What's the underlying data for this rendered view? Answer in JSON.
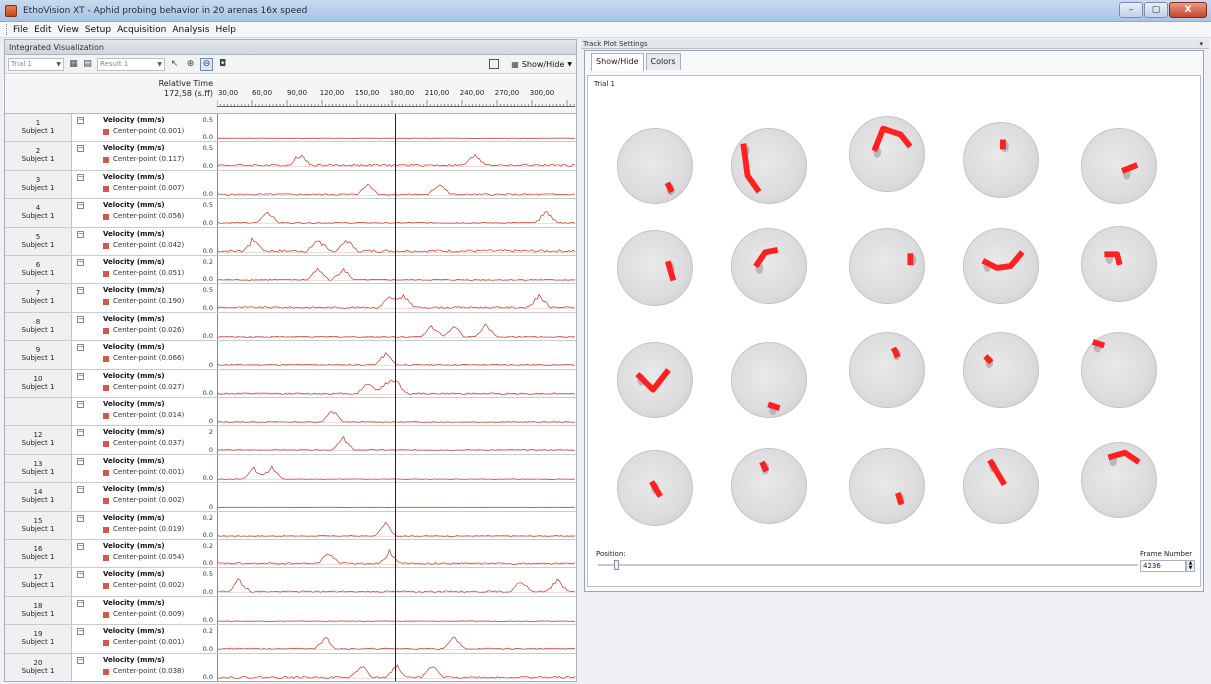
{
  "window": {
    "title": "EthoVision XT - Aphid probing behavior in 20 arenas 16x speed",
    "minimize_label": "–",
    "maximize_label": "▢",
    "close_label": "X"
  },
  "menu": {
    "items": [
      "File",
      "Edit",
      "View",
      "Setup",
      "Acquisition",
      "Analysis",
      "Help"
    ]
  },
  "left_panel": {
    "title": "Integrated Visualization",
    "trial_combo": "Trial   1",
    "result_combo": "Result 1",
    "show_hide_label": "Show/Hide",
    "relative_time_label": "Relative Time",
    "current_time": "172,58 (s.ff)",
    "time_ticks": [
      "30,00",
      "60,00",
      "90,00",
      "120,00",
      "150,00",
      "180,00",
      "210,00",
      "240,00",
      "270,00",
      "300,00"
    ],
    "variable_name": "Velocity (mm/s)",
    "point_name": "Center-point",
    "rows": [
      {
        "num": "1",
        "subject": "Subject 1",
        "value": "(0.001)",
        "max": "0.5",
        "min": "0.0",
        "activity": 0.05,
        "peaks": []
      },
      {
        "num": "2",
        "subject": "Subject 1",
        "value": "(0.117)",
        "max": "0.5",
        "min": "0.0",
        "activity": 0.45,
        "peaks": [
          0.23,
          0.72
        ]
      },
      {
        "num": "3",
        "subject": "Subject 1",
        "value": "(0.007)",
        "max": "",
        "min": "0.0",
        "activity": 0.35,
        "peaks": [
          0.42,
          0.62
        ]
      },
      {
        "num": "4",
        "subject": "Subject 1",
        "value": "(0.056)",
        "max": "0.5",
        "min": "0.0",
        "activity": 0.2,
        "peaks": [
          0.14,
          0.92
        ]
      },
      {
        "num": "5",
        "subject": "Subject 1",
        "value": "(0.042)",
        "max": "",
        "min": "0.0",
        "activity": 0.55,
        "peaks": [
          0.1,
          0.28,
          0.36
        ]
      },
      {
        "num": "6",
        "subject": "Subject 1",
        "value": "(0.051)",
        "max": "0.2",
        "min": "0.0",
        "activity": 0.2,
        "peaks": [
          0.28,
          0.35
        ]
      },
      {
        "num": "7",
        "subject": "Subject 1",
        "value": "(0.190)",
        "max": "0.5",
        "min": "0.0",
        "activity": 0.35,
        "peaks": [
          0.48,
          0.52,
          0.9
        ]
      },
      {
        "num": "8",
        "subject": "Subject 1",
        "value": "(0.026)",
        "max": "",
        "min": "0.0",
        "activity": 0.2,
        "peaks": [
          0.6,
          0.66,
          0.75
        ]
      },
      {
        "num": "9",
        "subject": "Subject 1",
        "value": "(0.066)",
        "max": "",
        "min": "0",
        "activity": 0.2,
        "peaks": [
          0.47
        ]
      },
      {
        "num": "10",
        "subject": "Subject 1",
        "value": "(0.027)",
        "max": "",
        "min": "0.0",
        "activity": 0.3,
        "peaks": [
          0.42,
          0.47,
          0.5
        ]
      },
      {
        "num": "",
        "subject": "",
        "value": "(0.014)",
        "max": "",
        "min": "0",
        "activity": 0.15,
        "peaks": [
          0.32
        ]
      },
      {
        "num": "12",
        "subject": "Subject 1",
        "value": "(0.037)",
        "max": "2",
        "min": "0",
        "activity": 0.15,
        "peaks": [
          0.35
        ]
      },
      {
        "num": "13",
        "subject": "Subject 1",
        "value": "(0.001)",
        "max": "",
        "min": "0.0",
        "activity": 0.1,
        "peaks": [
          0.1,
          0.15
        ]
      },
      {
        "num": "14",
        "subject": "Subject 1",
        "value": "(0.002)",
        "max": "",
        "min": "0",
        "activity": 0.03,
        "peaks": []
      },
      {
        "num": "15",
        "subject": "Subject 1",
        "value": "(0.019)",
        "max": "0.2",
        "min": "0.0",
        "activity": 0.15,
        "peaks": [
          0.47
        ]
      },
      {
        "num": "16",
        "subject": "Subject 1",
        "value": "(0.054)",
        "max": "0.2",
        "min": "0.0",
        "activity": 0.35,
        "peaks": [
          0.31,
          0.48
        ]
      },
      {
        "num": "17",
        "subject": "Subject 1",
        "value": "(0.002)",
        "max": "0.5",
        "min": "0.0",
        "activity": 0.3,
        "peaks": [
          0.06,
          0.85,
          0.95
        ]
      },
      {
        "num": "18",
        "subject": "Subject 1",
        "value": "(0.009)",
        "max": "",
        "min": "0.0",
        "activity": 0.1,
        "peaks": []
      },
      {
        "num": "19",
        "subject": "Subject 1",
        "value": "(0.001)",
        "max": "0.2",
        "min": "0.0",
        "activity": 0.25,
        "peaks": [
          0.3,
          0.66
        ]
      },
      {
        "num": "20",
        "subject": "Subject 1",
        "value": "(0.038)",
        "max": "",
        "min": "0.0",
        "activity": 0.4,
        "peaks": [
          0.4,
          0.5,
          0.6
        ]
      }
    ]
  },
  "right_panel": {
    "title": "Track Plot Settings",
    "tabs": [
      "Show/Hide",
      "Colors"
    ],
    "trial_label": "Trial    1",
    "position_label": "Position:",
    "frame_number_label": "Frame Number",
    "frame_number": "4236",
    "track_color": "#ff2020"
  }
}
